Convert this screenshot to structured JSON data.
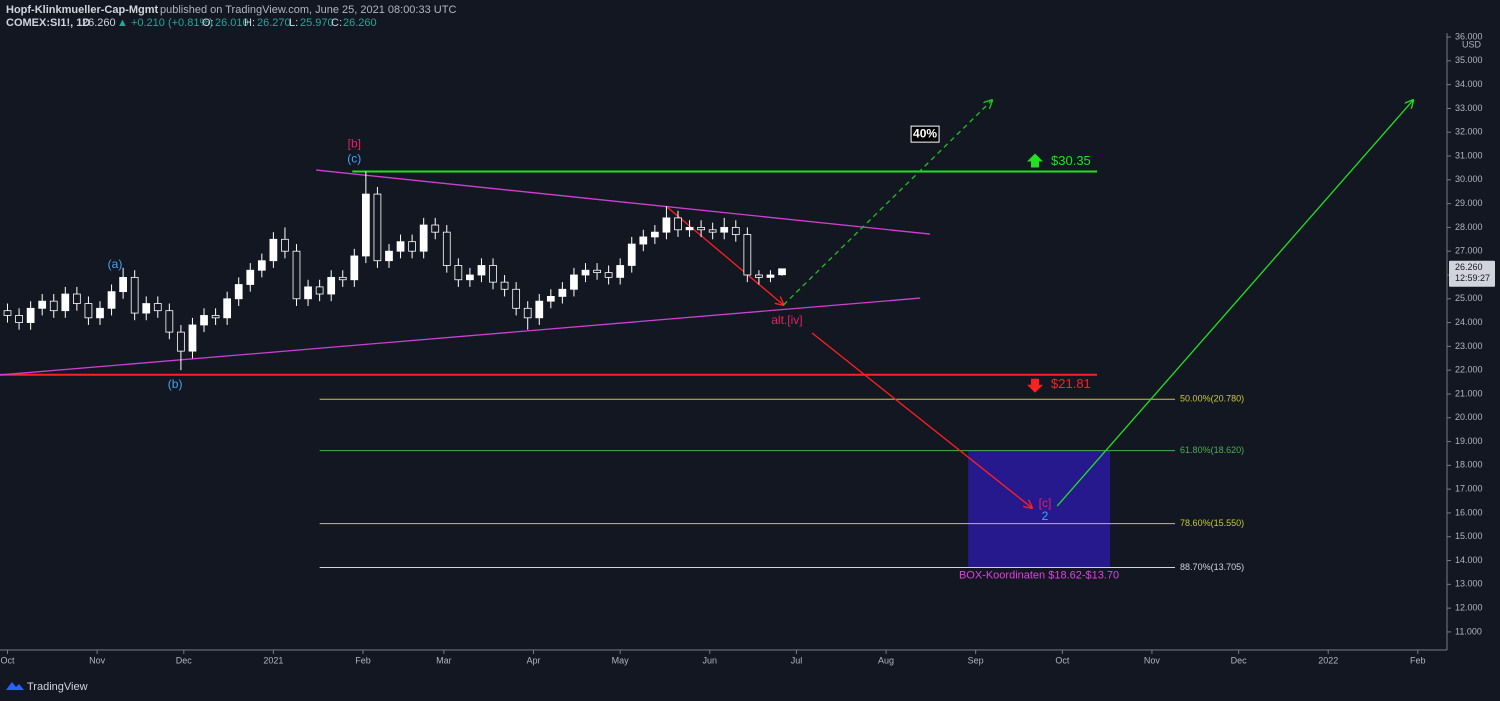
{
  "header": {
    "author": "Hopf-Klinkmueller-Cap-Mgmt",
    "published": "published on TradingView.com, June 25, 2021 08:00:33 UTC",
    "symbol": "COMEX:SI1!, 1D",
    "last": "26.260",
    "change": "▲ +0.210 (+0.81%)",
    "o_label": "O:",
    "o": "26.010",
    "h_label": "H:",
    "h": "26.270",
    "l_label": "L:",
    "l": "25.970",
    "c_label": "C:",
    "c": "26.260"
  },
  "footer": {
    "brand": "TradingView"
  },
  "chart_data": {
    "type": "candlestick",
    "currency": "USD",
    "up_color": "#ffffff",
    "down_color": "#131722",
    "x": [
      0,
      4,
      8,
      12,
      16,
      20,
      24,
      28,
      32,
      36,
      40,
      44,
      48,
      52,
      56,
      60,
      64,
      68,
      72,
      76,
      80,
      84,
      88,
      92,
      96,
      100,
      104,
      108,
      112,
      116,
      120,
      124,
      128,
      132,
      136,
      140,
      144,
      148,
      152,
      156,
      160,
      164,
      168,
      172,
      176,
      180,
      184,
      188,
      192,
      196,
      200,
      204,
      208,
      212,
      216,
      220,
      224,
      228,
      232,
      236,
      240,
      244,
      248,
      252,
      256,
      260,
      264,
      268
    ],
    "open": [
      24.5,
      24.3,
      24.0,
      24.6,
      24.9,
      24.5,
      25.2,
      24.8,
      24.2,
      24.6,
      25.3,
      25.9,
      24.4,
      24.8,
      24.5,
      23.6,
      22.8,
      23.9,
      24.3,
      24.2,
      25.0,
      25.6,
      26.2,
      26.6,
      27.5,
      27.0,
      25.0,
      25.5,
      25.2,
      25.9,
      25.8,
      26.8,
      29.4,
      26.6,
      27.0,
      27.4,
      27.0,
      28.1,
      27.8,
      26.4,
      25.8,
      26.0,
      26.4,
      25.7,
      25.4,
      24.6,
      24.2,
      24.9,
      25.1,
      25.4,
      26.0,
      26.2,
      26.1,
      25.9,
      26.4,
      27.3,
      27.6,
      27.8,
      28.4,
      27.9,
      28.0,
      27.9,
      27.8,
      28.0,
      27.7,
      26.0,
      25.9,
      26.01
    ],
    "high": [
      24.8,
      24.6,
      24.9,
      25.2,
      25.2,
      25.5,
      25.5,
      25.1,
      24.9,
      25.6,
      26.3,
      26.2,
      25.1,
      25.1,
      24.8,
      23.9,
      24.2,
      24.6,
      24.6,
      25.3,
      25.9,
      26.5,
      26.9,
      27.8,
      28.0,
      27.3,
      25.8,
      25.8,
      26.2,
      26.2,
      27.1,
      30.35,
      29.7,
      27.3,
      27.7,
      27.7,
      28.4,
      28.4,
      28.1,
      26.7,
      26.3,
      26.7,
      26.7,
      26.0,
      25.7,
      24.9,
      25.2,
      25.4,
      25.7,
      26.3,
      26.5,
      26.5,
      26.4,
      26.7,
      27.6,
      27.9,
      28.1,
      28.9,
      28.7,
      28.3,
      28.3,
      28.2,
      28.4,
      28.3,
      28.0,
      26.2,
      26.2,
      26.27
    ],
    "low": [
      24.0,
      23.7,
      23.7,
      24.3,
      24.2,
      24.2,
      24.5,
      23.9,
      23.9,
      24.3,
      25.0,
      24.1,
      24.1,
      24.2,
      23.3,
      22.0,
      22.5,
      23.6,
      23.9,
      23.9,
      24.7,
      25.3,
      25.9,
      26.3,
      26.7,
      24.7,
      24.7,
      24.9,
      24.9,
      25.5,
      25.5,
      26.5,
      26.3,
      26.3,
      26.7,
      26.7,
      26.7,
      27.5,
      26.1,
      25.5,
      25.5,
      25.7,
      25.4,
      25.1,
      24.3,
      23.7,
      23.9,
      24.6,
      24.8,
      25.1,
      25.7,
      25.8,
      25.6,
      25.6,
      26.1,
      27.0,
      27.3,
      27.5,
      27.6,
      27.6,
      27.6,
      27.5,
      27.5,
      27.4,
      25.7,
      25.6,
      25.7,
      25.97
    ],
    "close": [
      24.3,
      24.0,
      24.6,
      24.9,
      24.5,
      25.2,
      24.8,
      24.2,
      24.6,
      25.3,
      25.9,
      24.4,
      24.8,
      24.5,
      23.6,
      22.8,
      23.9,
      24.3,
      24.2,
      25.0,
      25.6,
      26.2,
      26.6,
      27.5,
      27.0,
      25.0,
      25.5,
      25.2,
      25.9,
      25.8,
      26.8,
      29.4,
      26.6,
      27.0,
      27.4,
      27.0,
      28.1,
      27.8,
      26.4,
      25.8,
      26.0,
      26.4,
      25.7,
      25.4,
      24.6,
      24.2,
      24.9,
      25.1,
      25.4,
      26.0,
      26.2,
      26.1,
      25.9,
      26.4,
      27.3,
      27.6,
      27.8,
      28.4,
      27.9,
      28.0,
      27.9,
      27.8,
      28.0,
      27.7,
      26.0,
      25.9,
      26.0,
      26.26
    ],
    "xlim": [
      -2.6,
      498.1
    ],
    "xticks": [
      {
        "value": 0,
        "label": "Oct"
      },
      {
        "value": 31,
        "label": "Nov"
      },
      {
        "value": 61,
        "label": "Dec"
      },
      {
        "value": 92,
        "label": "2021"
      },
      {
        "value": 123,
        "label": "Feb"
      },
      {
        "value": 151,
        "label": "Mar"
      },
      {
        "value": 182,
        "label": "Apr"
      },
      {
        "value": 212,
        "label": "May"
      },
      {
        "value": 243,
        "label": "Jun"
      },
      {
        "value": 273,
        "label": "Jul"
      },
      {
        "value": 304,
        "label": "Aug"
      },
      {
        "value": 335,
        "label": "Sep"
      },
      {
        "value": 365,
        "label": "Oct"
      },
      {
        "value": 396,
        "label": "Nov"
      },
      {
        "value": 426,
        "label": "Dec"
      },
      {
        "value": 457,
        "label": "2022"
      },
      {
        "value": 488,
        "label": "Feb"
      }
    ],
    "ylim": [
      10.24,
      36.17
    ],
    "yticks": [
      {
        "value": 11,
        "label": "11.000"
      },
      {
        "value": 12,
        "label": "12.000"
      },
      {
        "value": 13,
        "label": "13.000"
      },
      {
        "value": 14,
        "label": "14.000"
      },
      {
        "value": 15,
        "label": "15.000"
      },
      {
        "value": 16,
        "label": "16.000"
      },
      {
        "value": 17,
        "label": "17.000"
      },
      {
        "value": 18,
        "label": "18.000"
      },
      {
        "value": 19,
        "label": "19.000"
      },
      {
        "value": 20,
        "label": "20.000"
      },
      {
        "value": 21,
        "label": "21.000"
      },
      {
        "value": 22,
        "label": "22.000"
      },
      {
        "value": 23,
        "label": "23.000"
      },
      {
        "value": 24,
        "label": "24.000"
      },
      {
        "value": 25,
        "label": "25.000"
      },
      {
        "value": 26,
        "label": "26.000"
      },
      {
        "value": 27,
        "label": "27.000"
      },
      {
        "value": 28,
        "label": "28.000"
      },
      {
        "value": 29,
        "label": "29.000"
      },
      {
        "value": 30,
        "label": "30.000"
      },
      {
        "value": 31,
        "label": "31.000"
      },
      {
        "value": 32,
        "label": "32.000"
      },
      {
        "value": 33,
        "label": "33.000"
      },
      {
        "value": 34,
        "label": "34.000"
      },
      {
        "value": 35,
        "label": "35.000"
      },
      {
        "value": 36,
        "label": "36.000"
      }
    ],
    "last_price": {
      "value": 26.26,
      "label": "26.260",
      "countdown": "12:59:27"
    },
    "levels": [
      {
        "value": 30.35,
        "label": "$30.35",
        "color": "#22e022",
        "arrow": "up",
        "x": [
          119.3,
          377
        ]
      },
      {
        "value": 21.81,
        "label": "$21.81",
        "color": "#ff2020",
        "arrow": "down",
        "x": [
          -2.6,
          377
        ]
      }
    ],
    "fib_x": [
      108,
      404
    ],
    "fibs": [
      {
        "value": 20.78,
        "label": "50.00%(20.780)",
        "color": "#c8c83c"
      },
      {
        "value": 18.62,
        "label": "61.80%(18.620)",
        "color": "#4caf50"
      },
      {
        "value": 15.55,
        "label": "78.60%(15.550)",
        "color": "#c8c83c"
      },
      {
        "value": 13.705,
        "label": "88.70%(13.705)",
        "color": "#d1d4dc"
      }
    ],
    "lines": [
      {
        "from": [
          106.8,
          30.41
        ],
        "to": [
          319.2,
          27.72
        ],
        "color": "#d040d0",
        "dashed": false,
        "arrow": false
      },
      {
        "from": [
          -2.6,
          21.8
        ],
        "to": [
          315.8,
          25.03
        ],
        "color": "#d040d0",
        "dashed": false,
        "arrow": false
      },
      {
        "from": [
          228.2,
          28.86
        ],
        "to": [
          268.5,
          24.74
        ],
        "color": "#ff2020",
        "dashed": false,
        "arrow": true
      },
      {
        "from": [
          268.5,
          24.74
        ],
        "to": [
          340.7,
          33.35
        ],
        "color": "#22c022",
        "dashed": true,
        "arrow": true
      },
      {
        "from": [
          278.4,
          23.56
        ],
        "to": [
          354.5,
          16.21
        ],
        "color": "#ff2020",
        "dashed": false,
        "arrow": true
      },
      {
        "from": [
          363.2,
          16.29
        ],
        "to": [
          486.4,
          33.35
        ],
        "color": "#22e022",
        "dashed": false,
        "arrow": true
      }
    ],
    "box": {
      "x": [
        332.4,
        381.5
      ],
      "top": 18.62,
      "bottom": 13.705,
      "color": "#2a1aa0",
      "label": "BOX-Koordinaten $18.62-$13.70",
      "label_color": "#e040e0"
    },
    "annotations": [
      {
        "text": "[b]",
        "x": 120,
        "y": 31.5,
        "color": "#e91e63",
        "boxed": false
      },
      {
        "text": "(c)",
        "x": 120,
        "y": 30.87,
        "color": "#42a5f5",
        "boxed": false
      },
      {
        "text": "(a)",
        "x": 37.2,
        "y": 26.42,
        "color": "#42a5f5",
        "boxed": false
      },
      {
        "text": "(b)",
        "x": 58,
        "y": 21.38,
        "color": "#42a5f5",
        "boxed": false
      },
      {
        "text": "alt.[iv]",
        "x": 269.7,
        "y": 24.07,
        "color": "#e91e63",
        "boxed": false
      },
      {
        "text": "[c]",
        "x": 359,
        "y": 16.38,
        "color": "#e91e63",
        "boxed": false
      },
      {
        "text": "2",
        "x": 359,
        "y": 15.83,
        "color": "#42a5f5",
        "boxed": false
      },
      {
        "text": "40%",
        "x": 317.5,
        "y": 31.92,
        "color": "#ffffff",
        "boxed": true
      }
    ]
  }
}
